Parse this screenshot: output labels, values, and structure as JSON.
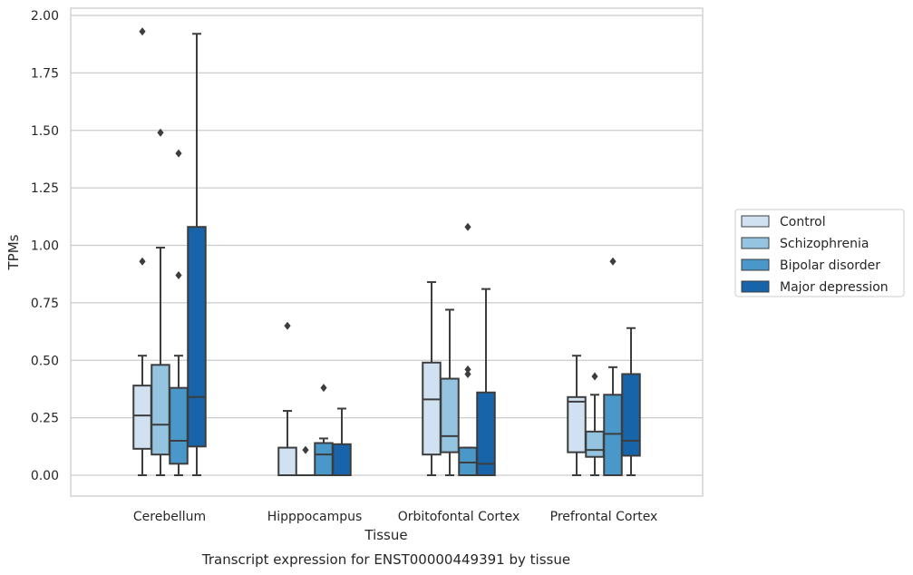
{
  "caption": "Transcript expression for ENST00000449391 by tissue",
  "chart_data": {
    "type": "box",
    "title": "",
    "xlabel": "Tissue",
    "ylabel": "TPMs",
    "ylim": [
      -0.1,
      2.03
    ],
    "yticks": [
      0.0,
      0.25,
      0.5,
      0.75,
      1.0,
      1.25,
      1.5,
      1.75,
      2.0
    ],
    "ytick_labels": [
      "0.00",
      "0.25",
      "0.50",
      "0.75",
      "1.00",
      "1.25",
      "1.50",
      "1.75",
      "2.00"
    ],
    "grid": "horizontal",
    "legend_position": "right-outside",
    "categories": [
      "Cerebellum",
      "Hipppocampus",
      "Orbitofontal Cortex",
      "Prefrontal Cortex"
    ],
    "series": [
      {
        "name": "Control",
        "color": "#d0e1f2",
        "boxes": [
          {
            "whislo": 0.0,
            "q1": 0.115,
            "med": 0.26,
            "q3": 0.39,
            "whishi": 0.52,
            "fliers": [
              0.93,
              1.93
            ]
          },
          {
            "whislo": 0.0,
            "q1": 0.0,
            "med": 0.0,
            "q3": 0.12,
            "whishi": 0.28,
            "fliers": [
              0.65
            ]
          },
          {
            "whislo": 0.0,
            "q1": 0.09,
            "med": 0.33,
            "q3": 0.49,
            "whishi": 0.84,
            "fliers": []
          },
          {
            "whislo": 0.0,
            "q1": 0.1,
            "med": 0.32,
            "q3": 0.34,
            "whishi": 0.52,
            "fliers": []
          }
        ]
      },
      {
        "name": "Schizophrenia",
        "color": "#94c4df",
        "boxes": [
          {
            "whislo": 0.0,
            "q1": 0.09,
            "med": 0.22,
            "q3": 0.48,
            "whishi": 0.99,
            "fliers": [
              1.49
            ]
          },
          {
            "whislo": 0.0,
            "q1": 0.0,
            "med": 0.0,
            "q3": 0.0,
            "whishi": 0.0,
            "fliers": [
              0.11
            ]
          },
          {
            "whislo": 0.0,
            "q1": 0.1,
            "med": 0.17,
            "q3": 0.42,
            "whishi": 0.72,
            "fliers": []
          },
          {
            "whislo": 0.0,
            "q1": 0.08,
            "med": 0.11,
            "q3": 0.19,
            "whishi": 0.35,
            "fliers": [
              0.43
            ]
          }
        ]
      },
      {
        "name": "Bipolar disorder",
        "color": "#4a98c9",
        "boxes": [
          {
            "whislo": 0.0,
            "q1": 0.05,
            "med": 0.15,
            "q3": 0.38,
            "whishi": 0.52,
            "fliers": [
              0.87,
              1.4
            ]
          },
          {
            "whislo": 0.0,
            "q1": 0.0,
            "med": 0.09,
            "q3": 0.14,
            "whishi": 0.16,
            "fliers": [
              0.38
            ]
          },
          {
            "whislo": 0.0,
            "q1": 0.0,
            "med": 0.055,
            "q3": 0.12,
            "whishi": 0.12,
            "fliers": [
              0.44,
              0.46,
              1.08
            ]
          },
          {
            "whislo": 0.0,
            "q1": 0.0,
            "med": 0.18,
            "q3": 0.35,
            "whishi": 0.47,
            "fliers": [
              0.93
            ]
          }
        ]
      },
      {
        "name": "Major depression",
        "color": "#1764ab",
        "boxes": [
          {
            "whislo": 0.0,
            "q1": 0.125,
            "med": 0.34,
            "q3": 1.08,
            "whishi": 1.92,
            "fliers": []
          },
          {
            "whislo": 0.0,
            "q1": 0.0,
            "med": 0.0,
            "q3": 0.135,
            "whishi": 0.29,
            "fliers": []
          },
          {
            "whislo": 0.0,
            "q1": 0.0,
            "med": 0.05,
            "q3": 0.36,
            "whishi": 0.81,
            "fliers": []
          },
          {
            "whislo": 0.0,
            "q1": 0.085,
            "med": 0.15,
            "q3": 0.44,
            "whishi": 0.64,
            "fliers": []
          }
        ]
      }
    ]
  }
}
